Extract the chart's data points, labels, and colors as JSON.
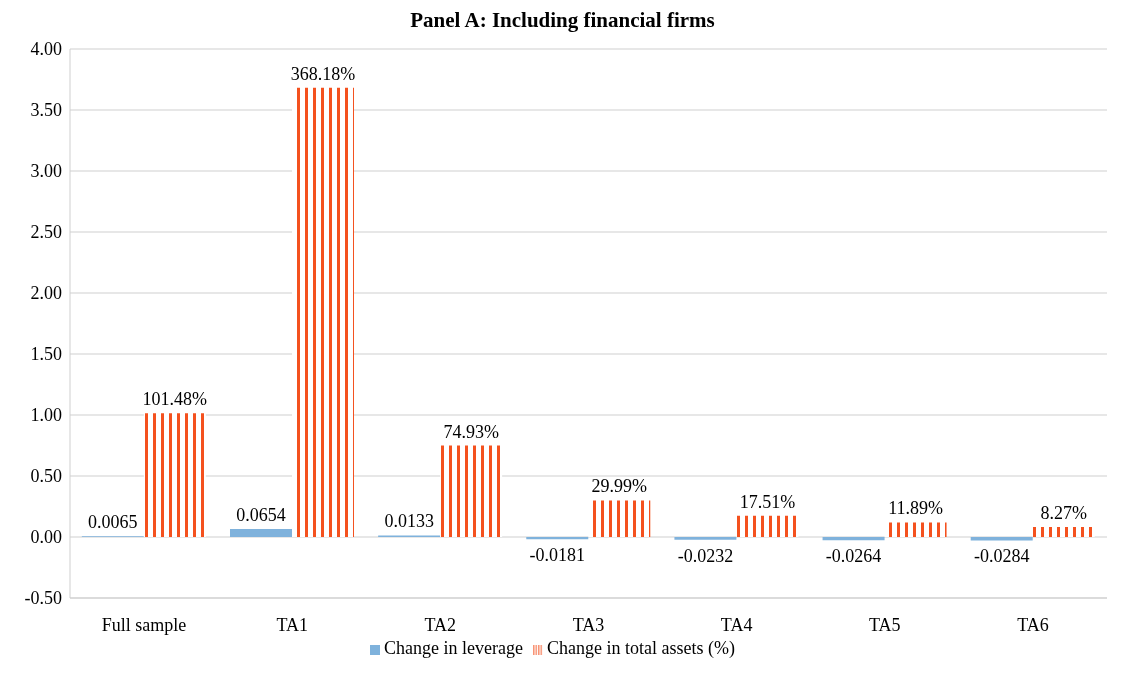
{
  "chart_data": {
    "type": "bar",
    "title": "Panel A: Including financial firms",
    "categories": [
      "Full sample",
      "TA1",
      "TA2",
      "TA3",
      "TA4",
      "TA5",
      "TA6"
    ],
    "series": [
      {
        "name": "Change in leverage",
        "color": "#7fb2dc",
        "values": [
          0.0065,
          0.0654,
          0.0133,
          -0.0181,
          -0.0232,
          -0.0264,
          -0.0284
        ],
        "value_labels": [
          "0.0065",
          "0.0654",
          "0.0133",
          "-0.0181",
          "-0.0232",
          "-0.0264",
          "-0.0284"
        ]
      },
      {
        "name": "Change in total assets (%)",
        "color": "#f4511e",
        "values": [
          1.0148,
          3.6818,
          0.7493,
          0.2999,
          0.1751,
          0.1189,
          0.0827
        ],
        "value_labels": [
          "101.48%",
          "368.18%",
          "74.93%",
          "29.99%",
          "17.51%",
          "11.89%",
          "8.27%"
        ]
      }
    ],
    "ylim": [
      -0.5,
      4
    ],
    "yticks": [
      {
        "value": -0.5,
        "label": "-0.50"
      },
      {
        "value": 0,
        "label": "0.00"
      },
      {
        "value": 0.5,
        "label": "0.50"
      },
      {
        "value": 1,
        "label": "1.00"
      },
      {
        "value": 1.5,
        "label": "1.50"
      },
      {
        "value": 2,
        "label": "2.00"
      },
      {
        "value": 2.5,
        "label": "2.50"
      },
      {
        "value": 3,
        "label": "3.00"
      },
      {
        "value": 3.5,
        "label": "3.50"
      },
      {
        "value": 4,
        "label": "4.00"
      }
    ],
    "grid": "y",
    "legend": "bottom"
  }
}
